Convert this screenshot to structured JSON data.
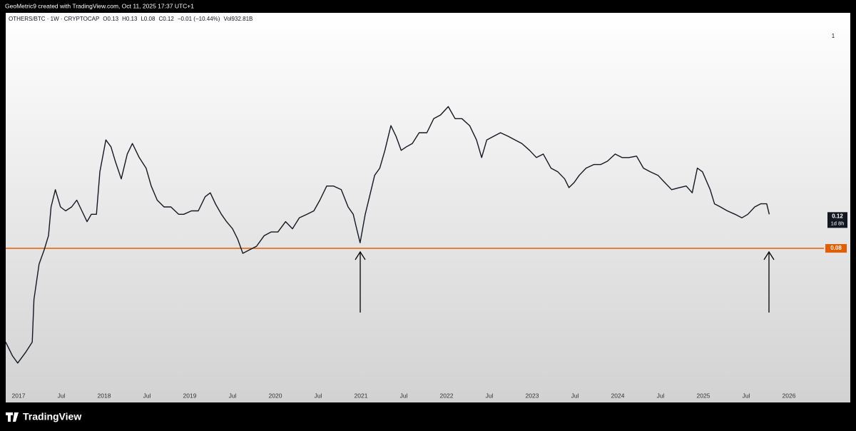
{
  "header": {
    "text": "GeoMetric9 created with TradingView.com, Oct 11, 2025 17:37 UTC+1"
  },
  "chart_data": {
    "type": "line",
    "legend": [
      "OTHERS/BTC · 1W · CRYPTOCAP",
      "O0.13",
      "H0.13",
      "L0.08",
      "C0.12",
      "−0.01 (−10.44%)",
      "Vol932.81B"
    ],
    "color": "#131722",
    "log_scale": true,
    "x": [
      2016.85,
      2016.93,
      2016.99,
      2017.08,
      2017.16,
      2017.18,
      2017.24,
      2017.3,
      2017.35,
      2017.38,
      2017.43,
      2017.49,
      2017.55,
      2017.62,
      2017.68,
      2017.74,
      2017.8,
      2017.85,
      2017.91,
      2017.95,
      2018.02,
      2018.08,
      2018.13,
      2018.2,
      2018.27,
      2018.33,
      2018.41,
      2018.49,
      2018.55,
      2018.62,
      2018.7,
      2018.78,
      2018.87,
      2018.93,
      2019.02,
      2019.1,
      2019.18,
      2019.24,
      2019.3,
      2019.37,
      2019.43,
      2019.5,
      2019.56,
      2019.62,
      2019.7,
      2019.78,
      2019.87,
      2019.95,
      2020.03,
      2020.12,
      2020.2,
      2020.28,
      2020.37,
      2020.45,
      2020.52,
      2020.6,
      2020.68,
      2020.77,
      2020.85,
      2020.91,
      2020.95,
      2020.99,
      2021.05,
      2021.1,
      2021.16,
      2021.22,
      2021.28,
      2021.35,
      2021.41,
      2021.47,
      2021.53,
      2021.6,
      2021.68,
      2021.77,
      2021.85,
      2021.93,
      2022.02,
      2022.1,
      2022.18,
      2022.27,
      2022.35,
      2022.41,
      2022.47,
      2022.55,
      2022.63,
      2022.72,
      2022.8,
      2022.88,
      2022.97,
      2023.05,
      2023.13,
      2023.22,
      2023.3,
      2023.38,
      2023.43,
      2023.49,
      2023.55,
      2023.63,
      2023.72,
      2023.8,
      2023.88,
      2023.97,
      2024.05,
      2024.13,
      2024.22,
      2024.3,
      2024.38,
      2024.47,
      2024.55,
      2024.63,
      2024.72,
      2024.8,
      2024.87,
      2024.93,
      2024.99,
      2025.08,
      2025.13,
      2025.2,
      2025.28,
      2025.37,
      2025.45,
      2025.52,
      2025.6,
      2025.67,
      2025.74,
      2025.77
    ],
    "values": [
      0.0262,
      0.0222,
      0.0204,
      0.0231,
      0.0262,
      0.0435,
      0.0664,
      0.0787,
      0.0931,
      0.131,
      0.161,
      0.131,
      0.125,
      0.131,
      0.142,
      0.125,
      0.11,
      0.12,
      0.12,
      0.199,
      0.291,
      0.268,
      0.226,
      0.183,
      0.246,
      0.279,
      0.236,
      0.208,
      0.168,
      0.142,
      0.131,
      0.131,
      0.12,
      0.12,
      0.125,
      0.125,
      0.148,
      0.155,
      0.136,
      0.12,
      0.11,
      0.101,
      0.0893,
      0.0754,
      0.0787,
      0.082,
      0.0931,
      0.0972,
      0.0972,
      0.11,
      0.101,
      0.115,
      0.12,
      0.125,
      0.142,
      0.168,
      0.168,
      0.161,
      0.131,
      0.12,
      0.101,
      0.0855,
      0.12,
      0.148,
      0.191,
      0.208,
      0.257,
      0.345,
      0.304,
      0.257,
      0.268,
      0.279,
      0.317,
      0.317,
      0.375,
      0.392,
      0.433,
      0.375,
      0.375,
      0.345,
      0.291,
      0.236,
      0.291,
      0.304,
      0.317,
      0.304,
      0.291,
      0.279,
      0.257,
      0.236,
      0.246,
      0.208,
      0.199,
      0.183,
      0.165,
      0.175,
      0.191,
      0.208,
      0.217,
      0.217,
      0.226,
      0.246,
      0.236,
      0.236,
      0.24,
      0.208,
      0.199,
      0.191,
      0.175,
      0.161,
      0.165,
      0.168,
      0.155,
      0.208,
      0.199,
      0.161,
      0.136,
      0.131,
      0.125,
      0.12,
      0.115,
      0.12,
      0.131,
      0.136,
      0.136,
      0.12
    ],
    "xlim": [
      2016.85,
      2026.37
    ],
    "xticks": [
      {
        "value": 2017,
        "label": "2017"
      },
      {
        "value": 2017.5,
        "label": "Jul"
      },
      {
        "value": 2018,
        "label": "2018"
      },
      {
        "value": 2018.5,
        "label": "Jul"
      },
      {
        "value": 2019,
        "label": "2019"
      },
      {
        "value": 2019.5,
        "label": "Jul"
      },
      {
        "value": 2020,
        "label": "2020"
      },
      {
        "value": 2020.5,
        "label": "Jul"
      },
      {
        "value": 2021,
        "label": "2021"
      },
      {
        "value": 2021.5,
        "label": "Jul"
      },
      {
        "value": 2022,
        "label": "2022"
      },
      {
        "value": 2022.5,
        "label": "Jul"
      },
      {
        "value": 2023,
        "label": "2023"
      },
      {
        "value": 2023.5,
        "label": "Jul"
      },
      {
        "value": 2024,
        "label": "2024"
      },
      {
        "value": 2024.5,
        "label": "Jul"
      },
      {
        "value": 2025,
        "label": "2025"
      },
      {
        "value": 2025.5,
        "label": "Jul"
      },
      {
        "value": 2026,
        "label": "2026"
      }
    ],
    "ylim": [
      0.015,
      1.3
    ],
    "yticks": [
      1
    ],
    "level": {
      "value": 0.08,
      "color": "#e65c00"
    },
    "last_price": {
      "value": 0.12,
      "countdown": "1d 8h"
    }
  },
  "footer": {
    "brand": "TradingView"
  }
}
